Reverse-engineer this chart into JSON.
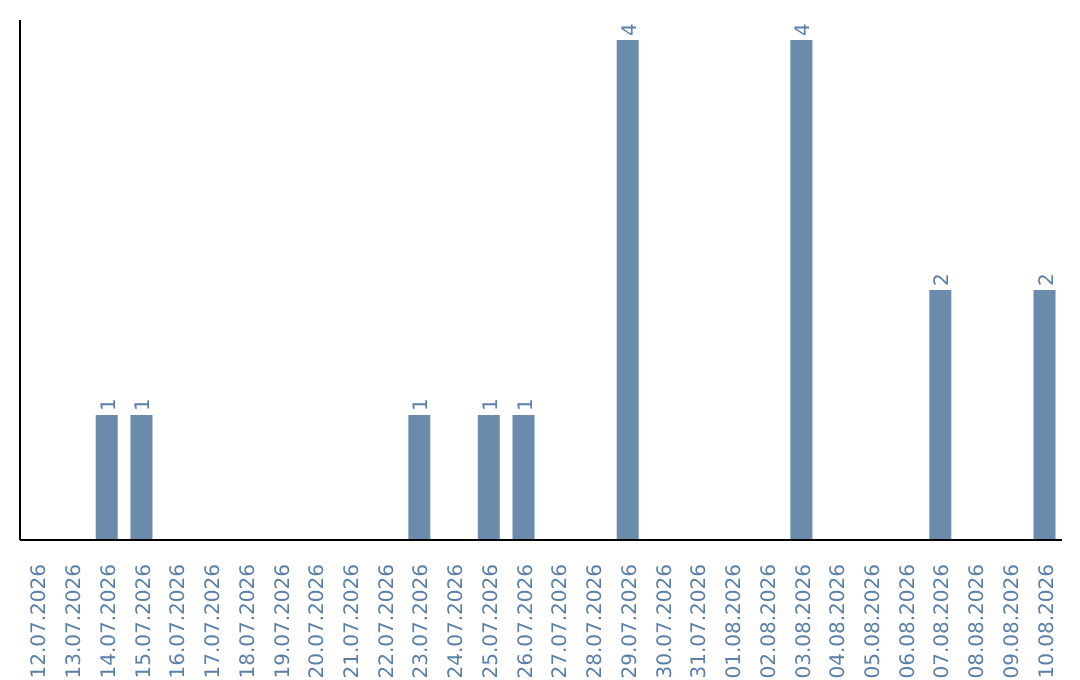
{
  "chart_data": {
    "type": "bar",
    "categories": [
      "12.07.2026",
      "13.07.2026",
      "14.07.2026",
      "15.07.2026",
      "16.07.2026",
      "17.07.2026",
      "18.07.2026",
      "19.07.2026",
      "20.07.2026",
      "21.07.2026",
      "22.07.2026",
      "23.07.2026",
      "24.07.2026",
      "25.07.2026",
      "26.07.2026",
      "27.07.2026",
      "28.07.2026",
      "29.07.2026",
      "30.07.2026",
      "31.07.2026",
      "01.08.2026",
      "02.08.2026",
      "03.08.2026",
      "04.08.2026",
      "05.08.2026",
      "06.08.2026",
      "07.08.2026",
      "08.08.2026",
      "09.08.2026",
      "10.08.2026"
    ],
    "values": [
      0,
      0,
      1,
      1,
      0,
      0,
      0,
      0,
      0,
      0,
      0,
      1,
      0,
      1,
      1,
      0,
      0,
      4,
      0,
      0,
      0,
      0,
      4,
      0,
      0,
      0,
      2,
      0,
      0,
      2
    ],
    "value_labels": [
      null,
      null,
      "1",
      "1",
      null,
      null,
      null,
      null,
      null,
      null,
      null,
      "1",
      null,
      "1",
      "1",
      null,
      null,
      "4",
      null,
      null,
      null,
      null,
      "4",
      null,
      null,
      null,
      "2",
      null,
      null,
      "2"
    ],
    "color": "#6a8bab",
    "grid": false,
    "legend": false,
    "tick_labels": "x"
  }
}
